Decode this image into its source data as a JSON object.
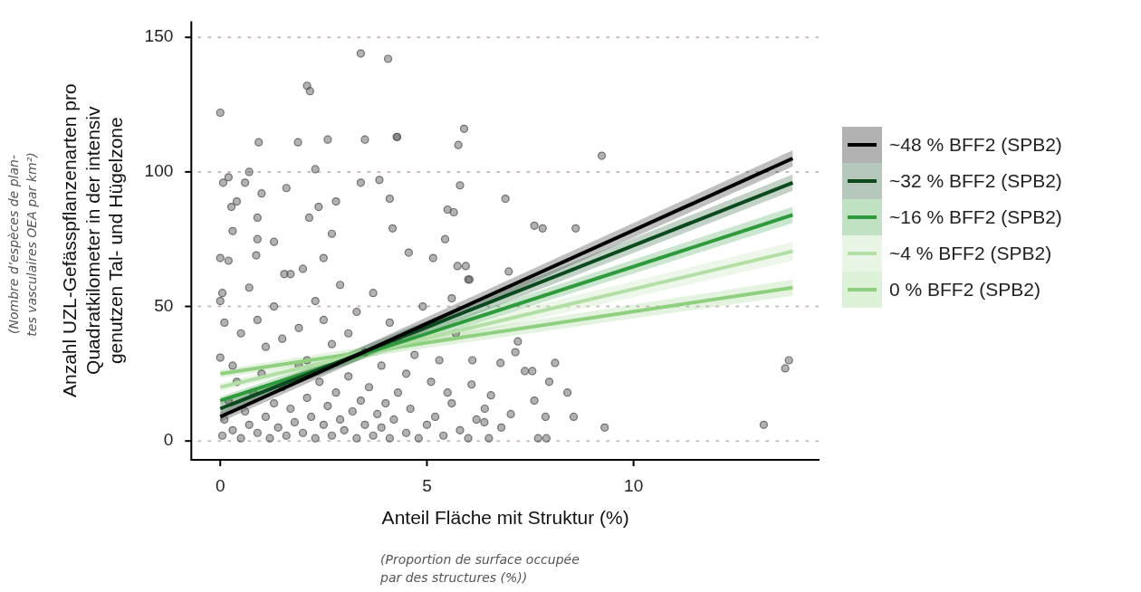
{
  "chart_data": {
    "type": "scatter",
    "xlabel": "Anteil Fläche mit Struktur (%)",
    "ylabel": "Anzahl UZL-Gefässpflanzenarten pro\nQuadratkilometer in der intensiv\ngenutzen Tal- und Hügelzone",
    "annotations": [
      "(Nombre d’espèces de plan-\ntes vasculaires OEA par km²)",
      "(Proportion de surface occupée\npar des structures (%))"
    ],
    "xlim": [
      -0.7,
      14.5
    ],
    "xticks": [
      0,
      5,
      10
    ],
    "ylim": [
      -7,
      156
    ],
    "yticks": [
      0,
      50,
      100,
      150
    ],
    "grid": "y",
    "legend": "right",
    "series": [
      {
        "marker": "circle",
        "color": "#555555",
        "x": [
          0,
          3.4,
          4.06,
          2.1,
          2.17,
          0.93,
          1.88,
          2.6,
          3.5,
          4.27,
          2.3,
          0.07,
          0.2,
          0.7,
          0.6,
          1.0,
          1.6,
          3.4,
          3.85,
          4.1,
          0.27,
          0.4,
          2.38,
          2.8,
          0.9,
          2.15,
          0.3,
          4.17,
          0.9,
          1.3,
          2.7,
          0,
          0.2,
          0.87,
          2.5,
          1.55,
          2.0,
          9.23,
          5.9,
          5.76,
          4.28,
          5.8,
          6.9,
          8.6,
          7.6,
          7.8,
          5.5,
          5.65,
          5.44,
          5.15,
          4.56,
          5.74,
          5.94,
          6.03,
          6.98,
          8.1,
          7.96,
          8.4,
          8.55,
          7.87,
          7.6,
          7.2,
          7.14,
          6.78,
          7.37,
          7.55,
          7.69,
          7.89,
          7.03,
          6.0,
          5.6,
          6.08,
          6.55,
          6.39,
          6.8,
          9.3,
          13.15,
          13.76,
          13.67,
          0.05,
          0.1,
          0.2,
          0.3,
          0.4,
          0.5,
          0.6,
          0.7,
          0.8,
          0.9,
          1.0,
          1.1,
          1.2,
          1.3,
          1.4,
          1.5,
          1.6,
          1.7,
          1.8,
          1.9,
          2.0,
          2.1,
          2.2,
          2.3,
          2.4,
          2.5,
          2.6,
          2.7,
          2.8,
          2.9,
          3.0,
          3.1,
          3.2,
          3.3,
          3.4,
          3.5,
          3.6,
          3.7,
          3.8,
          3.9,
          4.0,
          4.1,
          4.2,
          4.3,
          4.5,
          4.6,
          4.8,
          5.0,
          5.2,
          5.4,
          5.6,
          5.8,
          6.0,
          6.2,
          6.5,
          0,
          0.05,
          0.1,
          0,
          0.3,
          0.5,
          0.7,
          0.9,
          1.1,
          1.3,
          1.5,
          1.7,
          1.9,
          2.1,
          2.3,
          2.5,
          2.7,
          2.9,
          3.1,
          3.3,
          3.5,
          3.7,
          3.9,
          4.1,
          4.3,
          4.5,
          4.7,
          4.9,
          5.1,
          5.3,
          5.5,
          5.7,
          6.1,
          6.4
        ],
        "values": [
          122,
          144,
          142,
          132,
          130,
          111,
          111,
          112,
          112,
          113,
          101,
          96,
          98,
          100,
          96,
          92,
          94,
          96,
          97,
          90,
          87,
          89,
          87,
          89,
          83,
          83,
          78,
          79,
          75,
          74,
          77,
          68,
          67,
          69,
          68,
          62,
          64,
          106,
          116,
          110,
          113,
          95,
          90,
          79,
          80,
          79,
          86,
          85,
          75,
          68,
          70,
          65,
          65,
          60,
          63,
          29,
          22,
          18,
          9,
          9,
          15,
          37,
          33,
          29,
          26,
          26,
          1,
          1,
          10,
          60,
          53,
          21,
          17,
          7,
          5,
          5,
          6,
          30,
          27,
          2,
          8,
          15,
          4,
          22,
          1,
          11,
          6,
          18,
          3,
          25,
          9,
          1,
          14,
          5,
          20,
          2,
          12,
          7,
          28,
          3,
          16,
          9,
          1,
          22,
          6,
          13,
          2,
          18,
          8,
          4,
          24,
          11,
          1,
          15,
          6,
          20,
          2,
          10,
          5,
          14,
          1,
          8,
          18,
          3,
          12,
          1,
          6,
          9,
          2,
          14,
          4,
          1,
          8,
          1,
          52,
          55,
          44,
          31,
          28,
          40,
          57,
          45,
          35,
          50,
          38,
          62,
          42,
          30,
          52,
          45,
          36,
          58,
          40,
          48,
          33,
          55,
          28,
          44,
          37,
          25,
          32,
          50,
          22,
          30,
          18,
          40,
          30,
          12
        ]
      },
      {
        "type": "line",
        "name": "~48 % BFF2 (SPB2)",
        "marker": "none",
        "color": "#000000",
        "x": [
          0,
          13.85
        ],
        "values": [
          9,
          105
        ],
        "lower": [
          7,
          102
        ],
        "upper": [
          11,
          108
        ]
      },
      {
        "type": "line",
        "name": "~32 % BFF2 (SPB2)",
        "marker": "none",
        "color": "#0b4a1e",
        "x": [
          0,
          13.85
        ],
        "values": [
          12,
          96
        ],
        "lower": [
          10,
          93
        ],
        "upper": [
          14,
          99
        ]
      },
      {
        "type": "line",
        "name": "~16 % BFF2 (SPB2)",
        "marker": "none",
        "color": "#2e9a3c",
        "x": [
          0,
          13.85
        ],
        "values": [
          15,
          84
        ],
        "lower": [
          13.5,
          81
        ],
        "upper": [
          16.5,
          87
        ]
      },
      {
        "type": "line",
        "name": "~4 % BFF2 (SPB2)",
        "marker": "none",
        "color": "#b3dea6",
        "x": [
          0,
          13.85
        ],
        "values": [
          20,
          70.5
        ],
        "lower": [
          18.5,
          67
        ],
        "upper": [
          21.5,
          74
        ]
      },
      {
        "type": "line",
        "name": "0 % BFF2 (SPB2)",
        "marker": "none",
        "color": "#8fcf80",
        "x": [
          0,
          13.85
        ],
        "values": [
          25,
          57
        ],
        "lower": [
          23.5,
          54
        ],
        "upper": [
          26.5,
          60
        ]
      }
    ]
  }
}
